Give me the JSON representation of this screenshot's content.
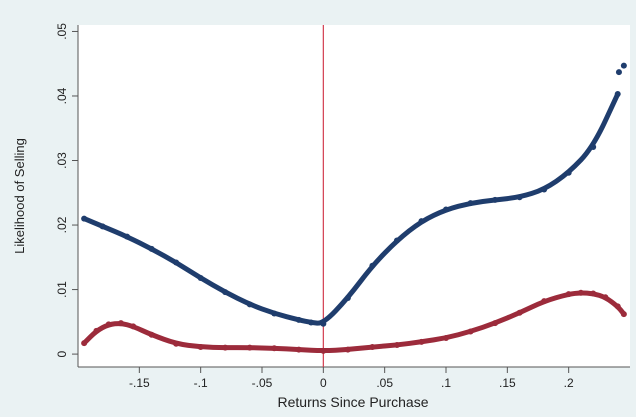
{
  "chart_data": {
    "type": "scatter",
    "title": "",
    "xlabel": "Returns Since Purchase",
    "ylabel": "Likelihood of Selling",
    "xlim": [
      -0.2,
      0.25
    ],
    "ylim": [
      -0.002,
      0.051
    ],
    "x_ticks": [
      {
        "value": -0.15,
        "label": "-.15"
      },
      {
        "value": -0.1,
        "label": "-.1"
      },
      {
        "value": -0.05,
        "label": "-.05"
      },
      {
        "value": 0,
        "label": "0"
      },
      {
        "value": 0.05,
        "label": ".05"
      },
      {
        "value": 0.1,
        "label": ".1"
      },
      {
        "value": 0.15,
        "label": ".15"
      },
      {
        "value": 0.2,
        "label": ".2"
      }
    ],
    "y_ticks": [
      {
        "value": 0,
        "label": "0"
      },
      {
        "value": 0.01,
        "label": ".01"
      },
      {
        "value": 0.02,
        "label": ".02"
      },
      {
        "value": 0.03,
        "label": ".03"
      },
      {
        "value": 0.04,
        "label": ".04"
      },
      {
        "value": 0.05,
        "label": ".05"
      }
    ],
    "vline_x": 0,
    "grid": false,
    "colors": {
      "series_1": "#1f3d6d",
      "series_2": "#9c2b3b",
      "vline": "#d23c4e",
      "plot_bg": "#ffffff",
      "outer_bg": "#eaf2f3"
    },
    "series": [
      {
        "x": [
          -0.195,
          -0.18,
          -0.16,
          -0.14,
          -0.12,
          -0.1,
          -0.08,
          -0.06,
          -0.04,
          -0.02,
          -0.01,
          0.0,
          0.02,
          0.04,
          0.06,
          0.08,
          0.1,
          0.12,
          0.14,
          0.16,
          0.18,
          0.2,
          0.22,
          0.24
        ],
        "y": [
          0.021,
          0.0198,
          0.0182,
          0.0163,
          0.0142,
          0.0118,
          0.0096,
          0.0077,
          0.0063,
          0.0053,
          0.0049,
          0.0047,
          0.0087,
          0.0137,
          0.0176,
          0.0206,
          0.0224,
          0.0234,
          0.0239,
          0.0243,
          0.0255,
          0.0281,
          0.0321,
          0.0403
        ]
      },
      {
        "x": [
          0.241,
          0.245
        ],
        "y": [
          0.0437,
          0.0447
        ]
      },
      {
        "x": [
          -0.195,
          -0.185,
          -0.175,
          -0.165,
          -0.155,
          -0.14,
          -0.12,
          -0.1,
          -0.08,
          -0.06,
          -0.04,
          -0.02,
          0.0,
          0.02,
          0.04,
          0.06,
          0.08,
          0.1,
          0.12,
          0.14,
          0.16,
          0.18,
          0.2,
          0.21,
          0.22,
          0.23,
          0.24,
          0.245
        ],
        "y": [
          0.0017,
          0.0036,
          0.0046,
          0.0048,
          0.0043,
          0.003,
          0.0016,
          0.0011,
          0.001,
          0.001,
          0.0009,
          0.0007,
          0.0005,
          0.0007,
          0.0011,
          0.0014,
          0.0019,
          0.0025,
          0.0035,
          0.0048,
          0.0064,
          0.0082,
          0.0093,
          0.0095,
          0.0094,
          0.0088,
          0.0074,
          0.0062
        ]
      }
    ]
  }
}
